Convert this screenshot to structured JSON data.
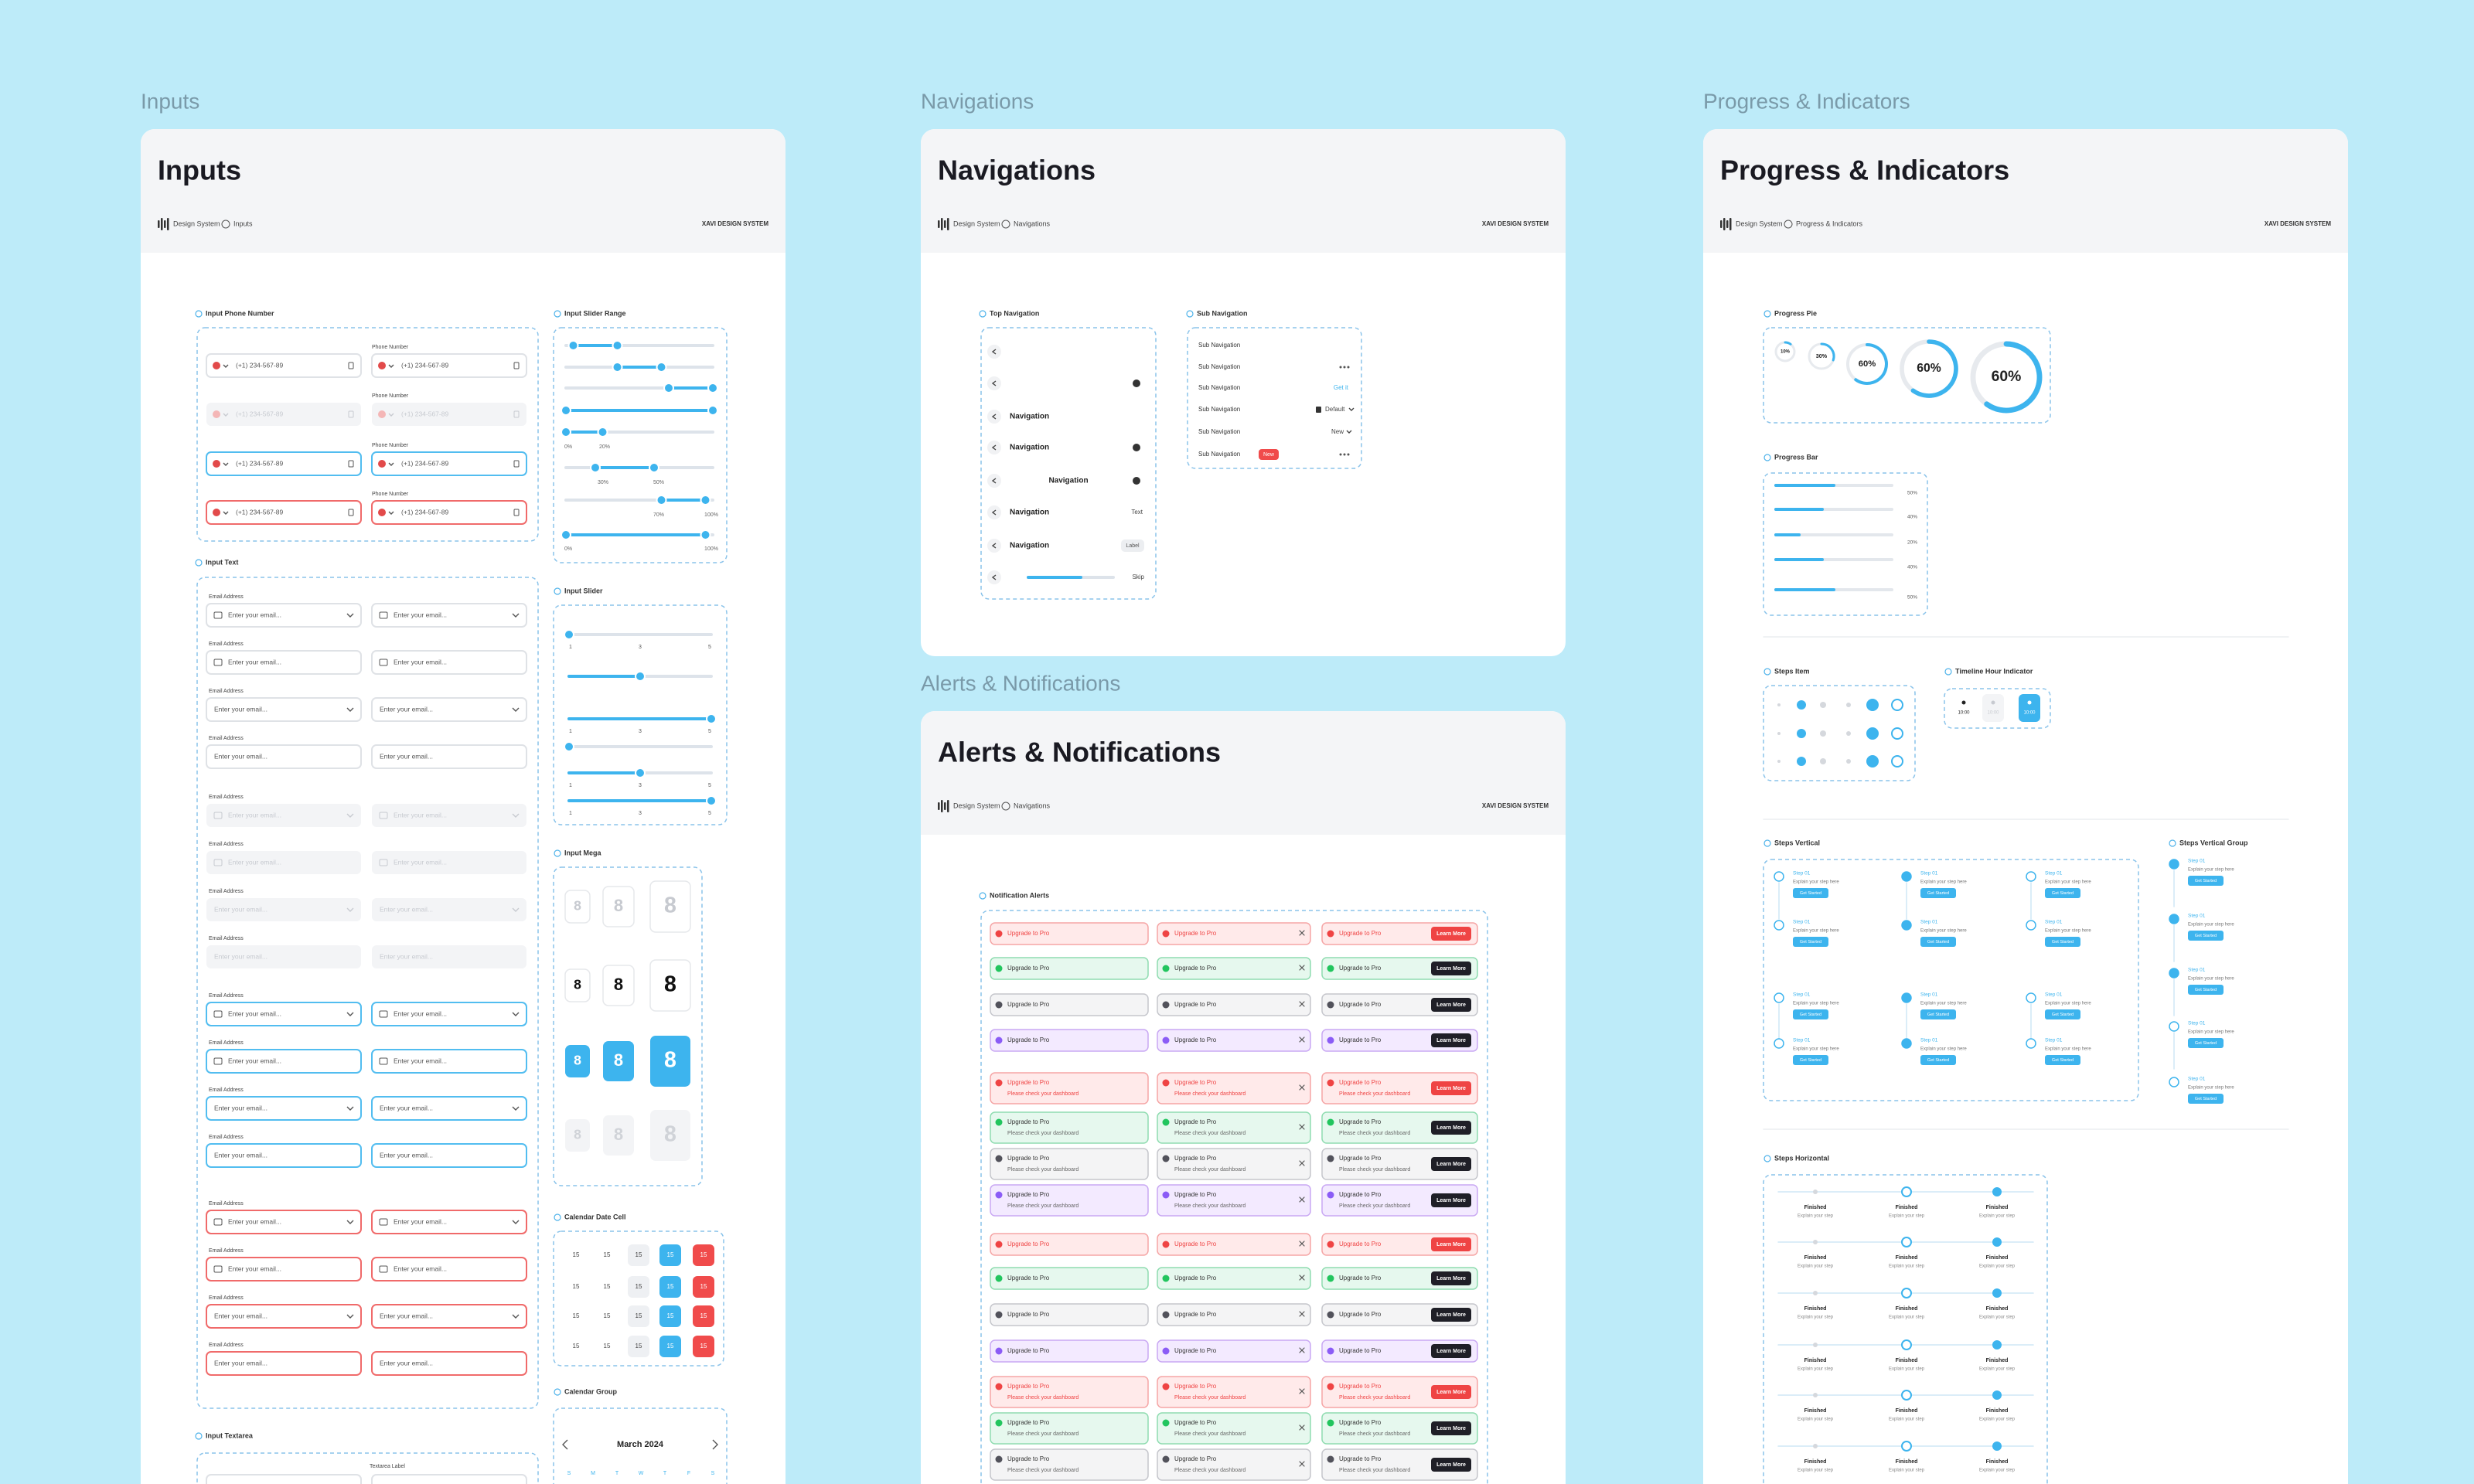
{
  "sections": {
    "inputs": "Inputs",
    "navigations": "Navigations",
    "alerts": "Alerts & Notifications",
    "progress": "Progress & Indicators"
  },
  "common": {
    "root": "Design System",
    "brand": "XAVI DESIGN SYSTEM"
  },
  "inputs": {
    "title": "Inputs",
    "crumb": "Inputs",
    "groups": {
      "phone": "Input Phone Number",
      "range": "Input Slider Range",
      "text": "Input Text",
      "slider": "Input Slider",
      "mega": "Input Mega",
      "date_cell": "Calendar Date Cell",
      "calendar": "Calendar Group",
      "textarea": "Input Textarea"
    },
    "phone_label": "Phone Number",
    "phone_value": "(+1) 234-567-89",
    "email_label": "Email Address",
    "email_placeholder": "Enter your email...",
    "range_labels": [
      "0%",
      "20%",
      "30%",
      "50%",
      "70%",
      "100%"
    ],
    "slider_ticks": [
      "1",
      "3",
      "5"
    ],
    "mega_digit": "8",
    "date": "15",
    "month": "March 2024",
    "weekdays": [
      "S",
      "M",
      "T",
      "W",
      "T",
      "F",
      "S"
    ],
    "textarea_label": "Textarea Label"
  },
  "navigations": {
    "title": "Navigations",
    "crumb": "Navigations",
    "top": "Top Navigation",
    "sub": "Sub Navigation",
    "nav_label": "Navigation",
    "text": "Text",
    "label": "Label",
    "skip": "Skip",
    "sub_item": "Sub Navigation",
    "get_it": "Get it",
    "default": "Default",
    "new": "New"
  },
  "alerts": {
    "title": "Alerts & Notifications",
    "crumb": "Navigations",
    "group": "Notification Alerts",
    "message": "Upgrade to Pro",
    "detail": "Please check your dashboard",
    "button": "Learn More"
  },
  "progress": {
    "title": "Progress & Indicators",
    "crumb": "Progress & Indicators",
    "groups": {
      "pie": "Progress Pie",
      "bar": "Progress Bar",
      "steps_item": "Steps Item",
      "timeline": "Timeline Hour Indicator",
      "steps_vertical": "Steps Vertical",
      "steps_vertical_group": "Steps Vertical Group",
      "steps_horizontal": "Steps Horizontal"
    },
    "pies": [
      {
        "value": 10,
        "label": "10%"
      },
      {
        "value": 30,
        "label": "30%"
      },
      {
        "value": 60,
        "label": "60%"
      },
      {
        "value": 60,
        "label": "60%"
      },
      {
        "value": 60,
        "label": "60%"
      }
    ],
    "bars": [
      {
        "value": 50,
        "label": "50%"
      },
      {
        "value": 40,
        "label": "40%"
      },
      {
        "value": 20,
        "label": "20%"
      },
      {
        "value": 40,
        "label": "40%"
      },
      {
        "value": 50,
        "label": "50%"
      }
    ],
    "time": "10:00",
    "step": "Step 01",
    "step_desc": "Explain your step here",
    "step_button": "Get Started",
    "finished": "Finished",
    "finished_desc": "Explain your step"
  }
}
